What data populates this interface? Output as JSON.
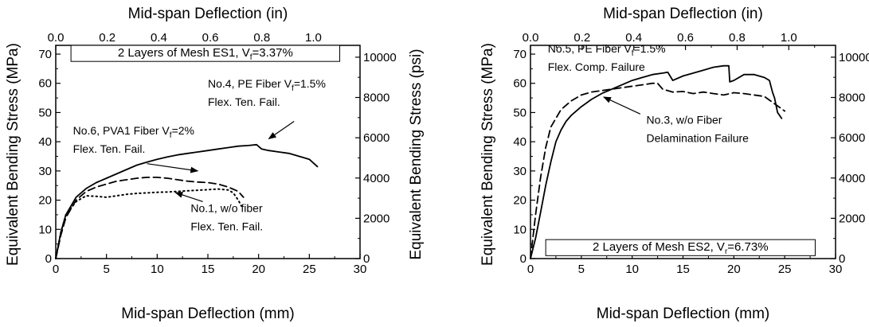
{
  "chart_data": [
    {
      "type": "line",
      "id": "left",
      "xlabel": "Mid-span Deflection (mm)",
      "x2label": "Mid-span Deflection (in)",
      "ylabel": "Equivalent Bending Stress (MPa)",
      "y2label": "Equivalent Bending Stress (psi)",
      "xlim": [
        0,
        30
      ],
      "ylim": [
        0,
        73
      ],
      "x2lim": [
        0,
        1.181
      ],
      "y2lim": [
        0,
        10588
      ],
      "x_ticks": [
        0,
        5,
        10,
        15,
        20,
        25,
        30
      ],
      "x_tick_labels": [
        "0",
        "5",
        "10",
        "15",
        "20",
        "25",
        "30"
      ],
      "y_ticks": [
        0,
        10,
        20,
        30,
        40,
        50,
        60,
        70
      ],
      "y_tick_labels": [
        "0",
        "10",
        "20",
        "30",
        "40",
        "50",
        "60",
        "70"
      ],
      "x2_ticks": [
        0,
        0.2,
        0.4,
        0.6,
        0.8,
        1.0
      ],
      "x2_tick_labels": [
        "0.0",
        "0.2",
        "0.4",
        "0.6",
        "0.8",
        "1.0"
      ],
      "y2_ticks": [
        0,
        2000,
        4000,
        6000,
        8000,
        10000
      ],
      "y2_tick_labels": [
        "0",
        "2000",
        "4000",
        "6000",
        "8000",
        "10000"
      ],
      "box_label": {
        "prefix": "2 Layers of Mesh ES1, V",
        "sub": "f",
        "suffix": "=3.37%"
      },
      "series": [
        {
          "style": "solid",
          "x": [
            0,
            0.5,
            1,
            2,
            3,
            4,
            5,
            6,
            7,
            8,
            9,
            10,
            11,
            12,
            13,
            14,
            15,
            16,
            17,
            18,
            19,
            19.8,
            20.3,
            21,
            22,
            23,
            24,
            25,
            25.8
          ],
          "y": [
            0,
            9,
            15,
            21,
            24,
            26,
            27.5,
            29,
            30.5,
            32,
            33,
            34,
            34.8,
            35.5,
            36,
            36.5,
            37,
            37.5,
            38,
            38.5,
            38.7,
            39,
            37.5,
            37,
            36.5,
            36,
            35,
            34,
            31.5
          ]
        },
        {
          "style": "dashed",
          "x": [
            0,
            0.5,
            1,
            2,
            3,
            4,
            5,
            6,
            7,
            8,
            9,
            10,
            11,
            12,
            13,
            14,
            15,
            16,
            17,
            18,
            18.5
          ],
          "y": [
            0,
            8,
            14,
            20,
            23,
            24.5,
            25.5,
            26.5,
            27,
            27.5,
            27.8,
            27.8,
            27.5,
            27,
            26.5,
            26.2,
            26,
            25.5,
            24.5,
            23,
            21
          ]
        },
        {
          "style": "dotted",
          "x": [
            0,
            0.5,
            1,
            2,
            3,
            4,
            5,
            6,
            7,
            8,
            9,
            10,
            11,
            12,
            13,
            14,
            15,
            16,
            17,
            17.5,
            18,
            18.3
          ],
          "y": [
            0,
            9,
            15,
            19.5,
            21.5,
            21.3,
            21,
            21.5,
            22,
            22.3,
            22.5,
            22.7,
            22.8,
            23,
            23.2,
            23.4,
            23.6,
            23.8,
            23.5,
            22.5,
            20,
            18
          ]
        }
      ],
      "annotations": [
        {
          "lines": [
            {
              "prefix": "No.4, PE Fiber V",
              "sub": "f",
              "suffix": "=1.5%"
            },
            {
              "prefix": "Flex. Ten. Fail.",
              "sub": "",
              "suffix": ""
            }
          ],
          "arrow": {
            "from": [
              23.5,
              47
            ],
            "to": [
              21,
              41
            ]
          }
        },
        {
          "lines": [
            {
              "prefix": "No.6, PVA1 Fiber V",
              "sub": "f",
              "suffix": "=2%"
            },
            {
              "prefix": "Flex. Ten. Fail.",
              "sub": "",
              "suffix": ""
            }
          ],
          "arrow": {
            "from": [
              9,
              32.5
            ],
            "to": [
              14,
              30
            ]
          }
        },
        {
          "lines": [
            {
              "prefix": "No.1, w/o fiber",
              "sub": "",
              "suffix": ""
            },
            {
              "prefix": "Flex. Ten. Fail.",
              "sub": "",
              "suffix": ""
            }
          ],
          "arrow": {
            "from": [
              14.5,
              19.5
            ],
            "to": [
              11.8,
              22.6
            ]
          }
        }
      ]
    },
    {
      "type": "line",
      "id": "right",
      "xlabel": "Mid-span Deflection (mm)",
      "x2label": "Mid-span Deflection (in)",
      "ylabel": "Equivalent Bending Stress (MPa)",
      "y2label": "Equivalent Bending Stress (psi)",
      "xlim": [
        0,
        30
      ],
      "ylim": [
        0,
        73
      ],
      "x2lim": [
        0,
        1.181
      ],
      "y2lim": [
        0,
        10588
      ],
      "x_ticks": [
        0,
        5,
        10,
        15,
        20,
        25,
        30
      ],
      "x_tick_labels": [
        "0",
        "5",
        "10",
        "15",
        "20",
        "25",
        "30"
      ],
      "y_ticks": [
        0,
        10,
        20,
        30,
        40,
        50,
        60,
        70
      ],
      "y_tick_labels": [
        "0",
        "10",
        "20",
        "30",
        "40",
        "50",
        "60",
        "70"
      ],
      "x2_ticks": [
        0,
        0.2,
        0.4,
        0.6,
        0.8,
        1.0
      ],
      "x2_tick_labels": [
        "0.0",
        "0.2",
        "0.4",
        "0.6",
        "0.8",
        "1.0"
      ],
      "y2_ticks": [
        0,
        2000,
        4000,
        6000,
        8000,
        10000
      ],
      "y2_tick_labels": [
        "0",
        "2000",
        "4000",
        "6000",
        "8000",
        "10000"
      ],
      "box_label": {
        "prefix": "2 Layers of Mesh ES2, V",
        "sub": "r",
        "suffix": "=6.73%"
      },
      "series": [
        {
          "style": "solid",
          "x": [
            0,
            0.5,
            1,
            1.5,
            2,
            2.5,
            3,
            3.5,
            4,
            5,
            6,
            7,
            8,
            9,
            10,
            11,
            12,
            13,
            13.5,
            14,
            15,
            16,
            17,
            18,
            19,
            19.5,
            19.6,
            20,
            21,
            22,
            23,
            23.5,
            23.8,
            24,
            24.3,
            24.7
          ],
          "y": [
            0,
            7,
            16,
            25,
            33,
            40,
            44,
            47,
            49,
            52,
            54.5,
            56.5,
            58,
            59.5,
            61,
            62,
            63,
            63.5,
            63.8,
            61,
            62.5,
            63.5,
            64.5,
            65.5,
            66,
            66,
            60.5,
            61,
            63,
            63,
            62,
            61,
            57,
            55,
            50,
            48
          ]
        },
        {
          "style": "dashed",
          "x": [
            0,
            0.5,
            1,
            1.5,
            2,
            3,
            4,
            5,
            6,
            7,
            8,
            9,
            10,
            11,
            12,
            12.5,
            13,
            14,
            15,
            16,
            17,
            18,
            19,
            20,
            21,
            22,
            23,
            24,
            25
          ],
          "y": [
            0,
            15,
            28,
            38,
            45,
            51,
            54,
            56,
            57,
            57.5,
            58,
            58.5,
            59,
            59.5,
            60,
            60,
            58,
            57,
            57.2,
            56.5,
            57,
            56.5,
            56,
            56.8,
            56.5,
            56,
            55.5,
            53,
            50.5
          ]
        }
      ],
      "annotations": [
        {
          "lines": [
            {
              "prefix": "No.5, PE Fiber V",
              "sub": "f",
              "suffix": "=1.5%"
            },
            {
              "prefix": "Flex. Comp. Failure",
              "sub": "",
              "suffix": ""
            }
          ],
          "arrow": null
        },
        {
          "lines": [
            {
              "prefix": "No.3, w/o Fiber",
              "sub": "",
              "suffix": ""
            },
            {
              "prefix": "Delamination Failure",
              "sub": "",
              "suffix": ""
            }
          ],
          "arrow": {
            "from": [
              10.8,
              49.5
            ],
            "to": [
              7.2,
              55.3
            ]
          }
        }
      ]
    }
  ]
}
